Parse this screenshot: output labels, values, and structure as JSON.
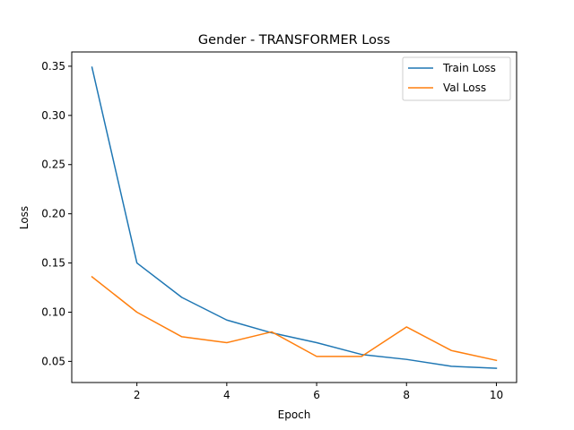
{
  "chart_data": {
    "type": "line",
    "title": "Gender - TRANSFORMER Loss",
    "xlabel": "Epoch",
    "ylabel": "Loss",
    "x": [
      1,
      2,
      3,
      4,
      5,
      6,
      7,
      8,
      9,
      10
    ],
    "xlim": [
      0.55,
      10.45
    ],
    "ylim": [
      0.0285,
      0.3645
    ],
    "xticks": [
      2,
      4,
      6,
      8,
      10
    ],
    "yticks": [
      0.05,
      0.1,
      0.15,
      0.2,
      0.25,
      0.3,
      0.35
    ],
    "xtick_labels": [
      "2",
      "4",
      "6",
      "8",
      "10"
    ],
    "ytick_labels": [
      "0.05",
      "0.10",
      "0.15",
      "0.20",
      "0.25",
      "0.30",
      "0.35"
    ],
    "grid": false,
    "legend_position": "top-right",
    "series": [
      {
        "name": "Train Loss",
        "color": "#1f77b4",
        "values": [
          0.349,
          0.15,
          0.115,
          0.092,
          0.079,
          0.069,
          0.057,
          0.052,
          0.045,
          0.043
        ]
      },
      {
        "name": "Val Loss",
        "color": "#ff7f0e",
        "values": [
          0.136,
          0.1,
          0.075,
          0.069,
          0.08,
          0.055,
          0.055,
          0.085,
          0.061,
          0.051
        ]
      }
    ]
  }
}
